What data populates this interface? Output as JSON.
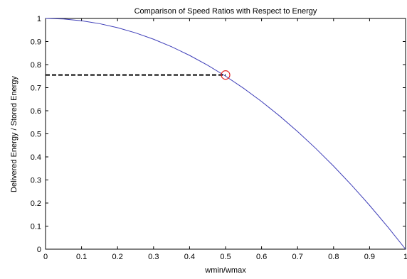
{
  "chart_data": {
    "type": "line",
    "title": "Comparison of Speed Ratios with Respect to Energy",
    "xlabel": "wmin/wmax",
    "ylabel": "Delivered Energy / Stored Energy",
    "xlim": [
      0,
      1
    ],
    "ylim": [
      0,
      1
    ],
    "xticks": [
      0,
      0.1,
      0.2,
      0.3,
      0.4,
      0.5,
      0.6,
      0.7,
      0.8,
      0.9,
      1
    ],
    "yticks": [
      0,
      0.1,
      0.2,
      0.3,
      0.4,
      0.5,
      0.6,
      0.7,
      0.8,
      0.9,
      1
    ],
    "xtick_labels": [
      "0",
      "0.1",
      "0.2",
      "0.3",
      "0.4",
      "0.5",
      "0.6",
      "0.7",
      "0.8",
      "0.9",
      "1"
    ],
    "ytick_labels": [
      "0",
      "0.1",
      "0.2",
      "0.3",
      "0.4",
      "0.5",
      "0.6",
      "0.7",
      "0.8",
      "0.9",
      "1"
    ],
    "grid": false,
    "series": [
      {
        "color": "#3d3db8",
        "x": [
          0,
          0.05,
          0.1,
          0.15,
          0.2,
          0.25,
          0.3,
          0.35,
          0.4,
          0.45,
          0.5,
          0.55,
          0.6,
          0.65,
          0.7,
          0.75,
          0.8,
          0.85,
          0.9,
          0.95,
          1
        ],
        "y": [
          1,
          0.9975,
          0.99,
          0.9775,
          0.96,
          0.9375,
          0.91,
          0.8775,
          0.84,
          0.7975,
          0.75,
          0.6975,
          0.64,
          0.5775,
          0.51,
          0.4375,
          0.36,
          0.2775,
          0.19,
          0.0975,
          0
        ]
      }
    ],
    "reference_line": {
      "style": "dashed",
      "color": "#000000",
      "from": [
        0,
        0.755
      ],
      "to": [
        0.5,
        0.755
      ]
    },
    "marker": {
      "shape": "circle",
      "color": "#e02020",
      "x": 0.5,
      "y": 0.755
    }
  }
}
